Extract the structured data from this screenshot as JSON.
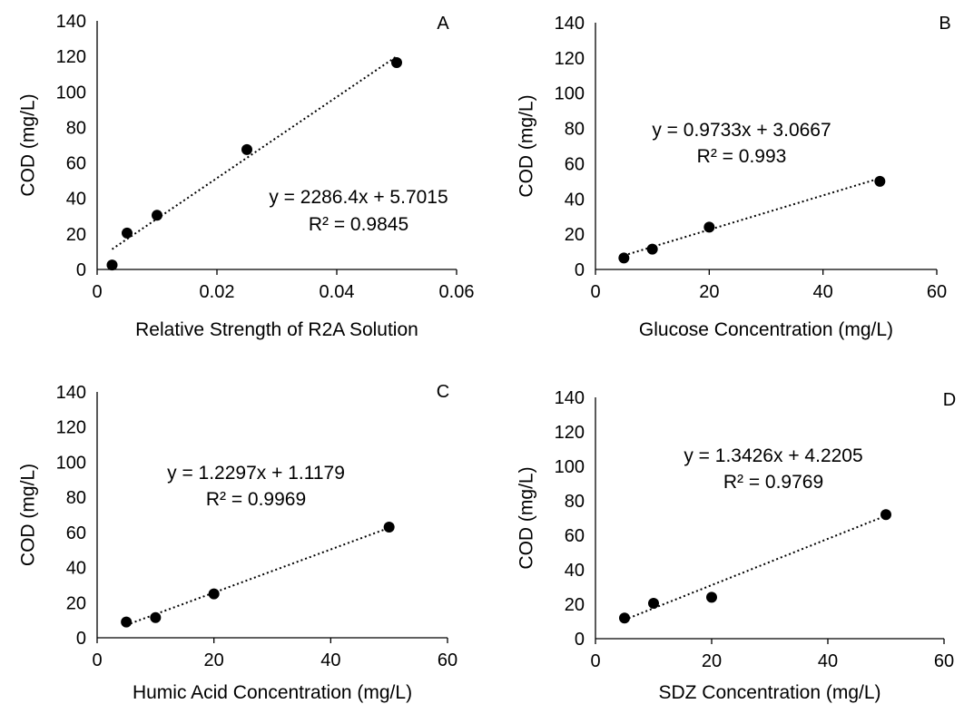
{
  "chart_data": [
    {
      "type": "scatter",
      "panel": "A",
      "xlabel": "Relative Strength of R2A Solution",
      "ylabel": "COD (mg/L)",
      "xlim": [
        0,
        0.06
      ],
      "ylim": [
        0,
        140
      ],
      "xticks": [
        0,
        0.02,
        0.04,
        0.06
      ],
      "xtick_labels": [
        "0",
        "0.02",
        "0.04",
        "0.06"
      ],
      "yticks": [
        0,
        20,
        40,
        60,
        80,
        100,
        120,
        140
      ],
      "ytick_labels": [
        "0",
        "20",
        "40",
        "60",
        "80",
        "100",
        "120",
        "140"
      ],
      "grid": false,
      "points": [
        {
          "x": 0.0025,
          "y": 2.5
        },
        {
          "x": 0.005,
          "y": 20.5
        },
        {
          "x": 0.01,
          "y": 30.5
        },
        {
          "x": 0.025,
          "y": 67.5
        },
        {
          "x": 0.05,
          "y": 116.5
        }
      ],
      "trendline": {
        "slope": 2286.4,
        "intercept": 5.7015,
        "x_range": [
          0.0025,
          0.05
        ],
        "style": "dotted"
      },
      "equation": "y = 2286.4x + 5.7015",
      "r2": "R² = 0.9845"
    },
    {
      "type": "scatter",
      "panel": "B",
      "xlabel": "Glucose Concentration (mg/L)",
      "ylabel": "COD (mg/L)",
      "xlim": [
        0,
        60
      ],
      "ylim": [
        0,
        140
      ],
      "xticks": [
        0,
        20,
        40,
        60
      ],
      "xtick_labels": [
        "0",
        "20",
        "40",
        "60"
      ],
      "yticks": [
        0,
        20,
        40,
        60,
        80,
        100,
        120,
        140
      ],
      "ytick_labels": [
        "0",
        "20",
        "40",
        "60",
        "80",
        "100",
        "120",
        "140"
      ],
      "grid": false,
      "points": [
        {
          "x": 5,
          "y": 6.5
        },
        {
          "x": 10,
          "y": 11.5
        },
        {
          "x": 20,
          "y": 24
        },
        {
          "x": 50,
          "y": 50
        }
      ],
      "trendline": {
        "slope": 0.9733,
        "intercept": 3.0667,
        "x_range": [
          5,
          50
        ],
        "style": "dotted"
      },
      "equation": "y = 0.9733x + 3.0667",
      "r2": "R² = 0.993"
    },
    {
      "type": "scatter",
      "panel": "C",
      "xlabel": "Humic Acid Concentration (mg/L)",
      "ylabel": "COD (mg/L)",
      "xlim": [
        0,
        60
      ],
      "ylim": [
        0,
        140
      ],
      "xticks": [
        0,
        20,
        40,
        60
      ],
      "xtick_labels": [
        "0",
        "20",
        "40",
        "60"
      ],
      "yticks": [
        0,
        20,
        40,
        60,
        80,
        100,
        120,
        140
      ],
      "ytick_labels": [
        "0",
        "20",
        "40",
        "60",
        "80",
        "100",
        "120",
        "140"
      ],
      "grid": false,
      "points": [
        {
          "x": 5,
          "y": 9
        },
        {
          "x": 10,
          "y": 11.5
        },
        {
          "x": 20,
          "y": 25
        },
        {
          "x": 50,
          "y": 63
        }
      ],
      "trendline": {
        "slope": 1.2297,
        "intercept": 1.1179,
        "x_range": [
          5,
          50
        ],
        "style": "dotted"
      },
      "equation": "y = 1.2297x + 1.1179",
      "r2": "R² = 0.9969"
    },
    {
      "type": "scatter",
      "panel": "D",
      "xlabel": "SDZ Concentration (mg/L)",
      "ylabel": "COD (mg/L)",
      "xlim": [
        0,
        60
      ],
      "ylim": [
        0,
        140
      ],
      "xticks": [
        0,
        20,
        40,
        60
      ],
      "xtick_labels": [
        "0",
        "20",
        "40",
        "60"
      ],
      "yticks": [
        0,
        20,
        40,
        60,
        80,
        100,
        120,
        140
      ],
      "ytick_labels": [
        "0",
        "20",
        "40",
        "60",
        "80",
        "100",
        "120",
        "140"
      ],
      "grid": false,
      "points": [
        {
          "x": 5,
          "y": 12
        },
        {
          "x": 10,
          "y": 20.5
        },
        {
          "x": 20,
          "y": 24
        },
        {
          "x": 50,
          "y": 72
        }
      ],
      "trendline": {
        "slope": 1.3426,
        "intercept": 4.2205,
        "x_range": [
          5,
          50
        ],
        "style": "dotted"
      },
      "equation": "y = 1.3426x + 4.2205",
      "r2": "R² = 0.9769"
    }
  ]
}
